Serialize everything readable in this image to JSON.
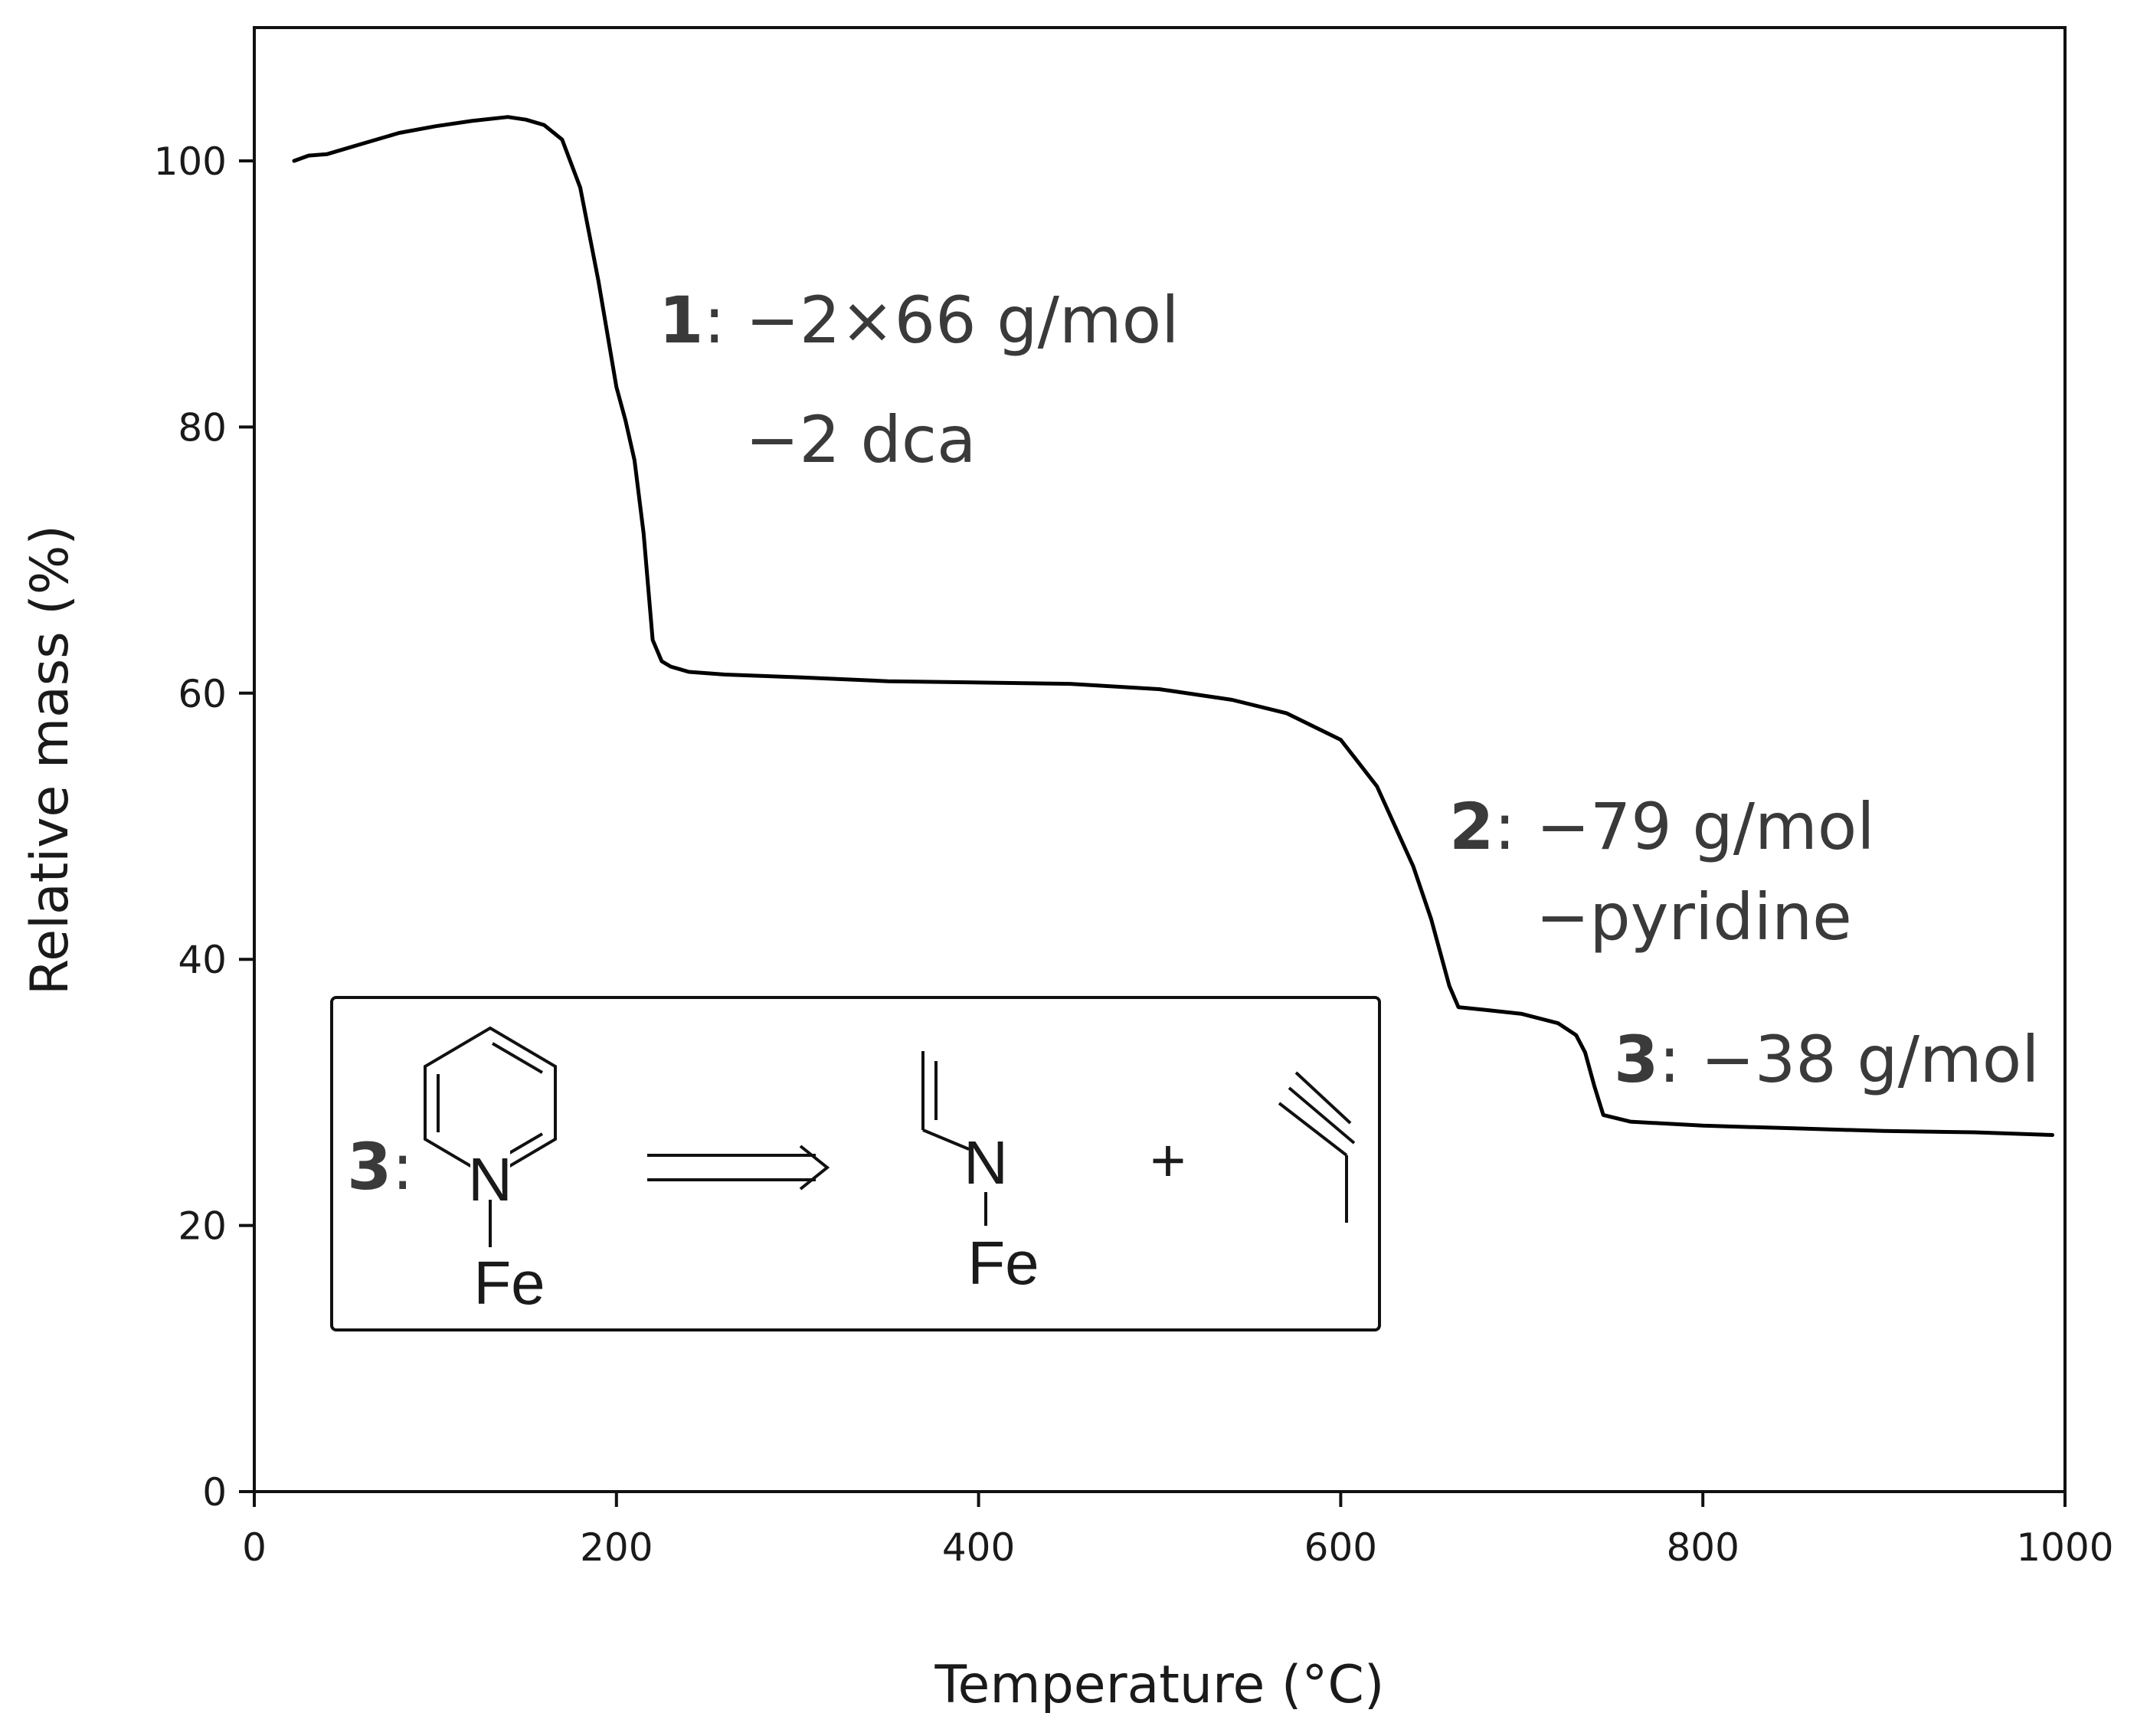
{
  "chart_data": {
    "type": "line",
    "xlabel": "Temperature (°C)",
    "ylabel": "Relative mass (%)",
    "xlim": [
      0,
      1000
    ],
    "ylim": [
      0,
      110
    ],
    "xticks": [
      0,
      200,
      400,
      600,
      800,
      1000
    ],
    "yticks": [
      0,
      20,
      40,
      60,
      80,
      100
    ],
    "grid": false,
    "series": [
      {
        "x": [
          22,
          30,
          40,
          60,
          80,
          100,
          120,
          140,
          150,
          160,
          170,
          180,
          190,
          200,
          205,
          210,
          215,
          220,
          225,
          230,
          240,
          260,
          300,
          350,
          400,
          450,
          500,
          540,
          570,
          600,
          620,
          640,
          650,
          660,
          665,
          680,
          700,
          720,
          730,
          735,
          740,
          745,
          760,
          800,
          850,
          900,
          950,
          993
        ],
        "y": [
          100,
          100.4,
          100.5,
          101.3,
          102.1,
          102.6,
          103.0,
          103.3,
          103.1,
          102.7,
          101.6,
          98.0,
          91.0,
          83.0,
          80.5,
          77.5,
          72.0,
          64.0,
          62.4,
          62.0,
          61.6,
          61.4,
          61.2,
          60.9,
          60.8,
          60.7,
          60.3,
          59.5,
          58.5,
          56.5,
          53.0,
          47.0,
          43.0,
          38.0,
          36.4,
          36.2,
          35.9,
          35.2,
          34.3,
          33.0,
          30.5,
          28.3,
          27.8,
          27.5,
          27.3,
          27.1,
          27.0,
          26.8
        ]
      }
    ],
    "annotations": {
      "step1": {
        "num": "1",
        "line1": ": −2×66 g/mol",
        "line2": "−2 dca"
      },
      "step2": {
        "num": "2",
        "line1": ": −79 g/mol",
        "line2": "−pyridine"
      },
      "step3": {
        "num": "3",
        "line1": ": −38 g/mol"
      }
    }
  },
  "scheme": {
    "label_num": "3",
    "label_colon": ":",
    "reactant_n": "N",
    "reactant_fe": "Fe",
    "product_n": "N",
    "product_fe": "Fe",
    "plus": "+"
  }
}
